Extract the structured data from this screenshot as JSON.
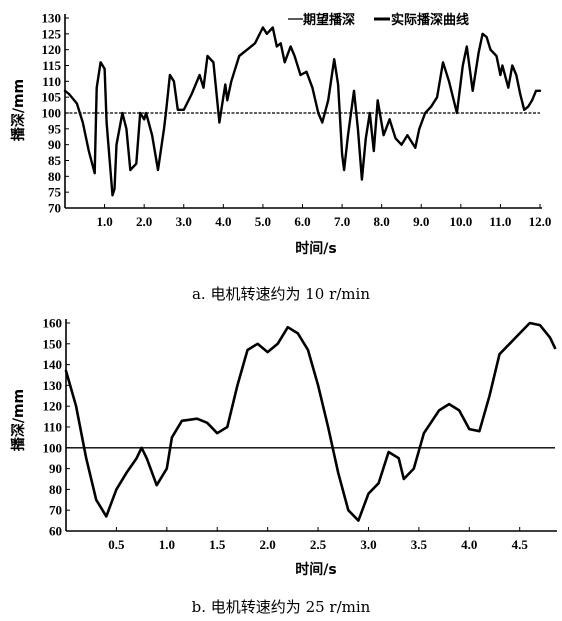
{
  "chart_data": [
    {
      "type": "line",
      "caption": "a. 电机转速约为 10 r/min",
      "xlabel": "时间/s",
      "ylabel": "播深/mm",
      "xlim": [
        0,
        12
      ],
      "ylim": [
        70,
        130
      ],
      "x_ticks": [
        "1.0",
        "2.0",
        "3.0",
        "4.0",
        "5.0",
        "6.0",
        "7.0",
        "8.0",
        "9.0",
        "10.0",
        "11.0",
        "12.0"
      ],
      "y_ticks": [
        "70",
        "75",
        "80",
        "85",
        "90",
        "95",
        "100",
        "105",
        "110",
        "115",
        "120",
        "125",
        "130"
      ],
      "legend": [
        "期望播深",
        "实际播深曲线"
      ],
      "reference": {
        "name": "期望播深",
        "y": 100
      },
      "series": [
        {
          "name": "实际播深曲线",
          "x": [
            0.0,
            0.1,
            0.3,
            0.45,
            0.6,
            0.75,
            0.8,
            0.9,
            1.0,
            1.05,
            1.2,
            1.25,
            1.3,
            1.45,
            1.55,
            1.65,
            1.8,
            1.9,
            2.0,
            2.05,
            2.2,
            2.35,
            2.5,
            2.55,
            2.65,
            2.75,
            2.85,
            3.0,
            3.2,
            3.4,
            3.5,
            3.6,
            3.75,
            3.9,
            4.0,
            4.05,
            4.1,
            4.2,
            4.4,
            4.6,
            4.8,
            5.0,
            5.1,
            5.25,
            5.35,
            5.45,
            5.55,
            5.7,
            5.8,
            5.95,
            6.1,
            6.25,
            6.4,
            6.5,
            6.65,
            6.8,
            6.9,
            7.0,
            7.05,
            7.15,
            7.3,
            7.4,
            7.5,
            7.6,
            7.7,
            7.8,
            7.9,
            8.05,
            8.2,
            8.35,
            8.5,
            8.65,
            8.85,
            8.95,
            9.1,
            9.25,
            9.4,
            9.55,
            9.7,
            9.9,
            10.05,
            10.15,
            10.3,
            10.45,
            10.55,
            10.65,
            10.75,
            10.9,
            11.0,
            11.05,
            11.2,
            11.3,
            11.4,
            11.5,
            11.6,
            11.7,
            11.8,
            11.9,
            12.0
          ],
          "y": [
            107,
            106,
            103,
            97,
            88,
            81,
            108,
            116,
            114,
            97,
            74,
            76,
            90,
            100,
            95,
            82,
            84,
            100,
            98,
            100,
            93,
            82,
            95,
            100,
            112,
            110,
            101,
            101,
            106,
            112,
            108,
            118,
            116,
            97,
            105,
            109,
            104,
            110,
            118,
            120,
            122,
            127,
            125,
            127,
            121,
            122,
            116,
            121,
            118,
            112,
            113,
            108,
            100,
            97,
            104,
            117,
            109,
            87,
            82,
            93,
            107,
            95,
            79,
            92,
            100,
            88,
            104,
            93,
            98,
            92,
            90,
            93,
            89,
            95,
            100,
            102,
            105,
            116,
            110,
            100,
            115,
            121,
            107,
            119,
            125,
            124,
            120,
            118,
            112,
            115,
            108,
            115,
            112,
            106,
            101,
            102,
            104,
            107,
            107
          ]
        }
      ]
    },
    {
      "type": "line",
      "caption": "b. 电机转速约为 25 r/min",
      "xlabel": "时间/s",
      "ylabel": "播深/mm",
      "xlim": [
        0,
        4.85
      ],
      "ylim": [
        60,
        160
      ],
      "x_ticks": [
        "0.5",
        "1.0",
        "1.5",
        "2.0",
        "2.5",
        "3.0",
        "3.5",
        "4.0",
        "4.5"
      ],
      "y_ticks": [
        "60",
        "70",
        "80",
        "90",
        "100",
        "110",
        "120",
        "130",
        "140",
        "150",
        "160"
      ],
      "reference": {
        "name": "期望播深",
        "y": 100
      },
      "series": [
        {
          "name": "实际播深曲线",
          "x": [
            0.0,
            0.1,
            0.2,
            0.3,
            0.4,
            0.5,
            0.6,
            0.7,
            0.75,
            0.8,
            0.9,
            1.0,
            1.05,
            1.15,
            1.3,
            1.4,
            1.5,
            1.6,
            1.7,
            1.8,
            1.9,
            2.0,
            2.1,
            2.2,
            2.3,
            2.4,
            2.5,
            2.6,
            2.7,
            2.8,
            2.9,
            3.0,
            3.1,
            3.2,
            3.3,
            3.35,
            3.45,
            3.55,
            3.7,
            3.8,
            3.9,
            4.0,
            4.1,
            4.2,
            4.3,
            4.4,
            4.5,
            4.6,
            4.7,
            4.8,
            4.85
          ],
          "y": [
            137,
            120,
            95,
            75,
            67,
            80,
            88,
            95,
            100,
            95,
            82,
            90,
            105,
            113,
            114,
            112,
            107,
            110,
            130,
            147,
            150,
            146,
            150,
            158,
            155,
            147,
            130,
            110,
            88,
            70,
            65,
            78,
            83,
            98,
            95,
            85,
            90,
            107,
            118,
            121,
            118,
            109,
            108,
            125,
            145,
            150,
            155,
            160,
            159,
            153,
            148
          ]
        }
      ]
    }
  ]
}
